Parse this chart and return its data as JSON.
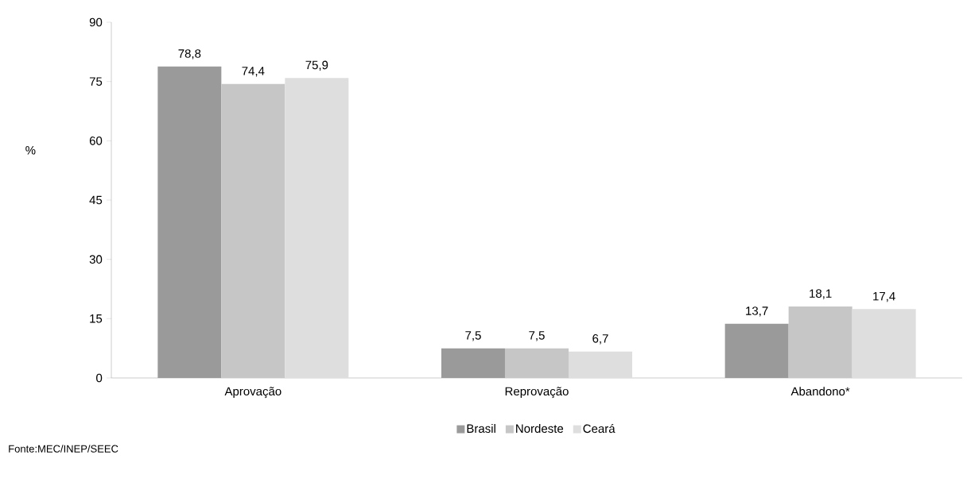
{
  "chart_data": {
    "type": "bar",
    "ylabel": "%",
    "categories": [
      "Aprovação",
      "Reprovação",
      "Abandono*"
    ],
    "series": [
      {
        "name": "Brasil",
        "color": "#9a9a9a",
        "values": [
          78.8,
          7.5,
          13.7
        ],
        "value_labels": [
          "78,8",
          "7,5",
          "13,7"
        ]
      },
      {
        "name": "Nordeste",
        "color": "#c6c6c6",
        "values": [
          74.4,
          7.5,
          18.1
        ],
        "value_labels": [
          "74,4",
          "7,5",
          "18,1"
        ]
      },
      {
        "name": "Ceará",
        "color": "#dedede",
        "values": [
          75.9,
          6.7,
          17.4
        ],
        "value_labels": [
          "75,9",
          "6,7",
          "17,4"
        ]
      }
    ],
    "ylim": [
      0,
      90
    ],
    "yticks": [
      0,
      15,
      30,
      45,
      60,
      75,
      90
    ],
    "legend": "bottom",
    "annotations": [
      "Fonte:MEC/INEP/SEEC"
    ]
  }
}
